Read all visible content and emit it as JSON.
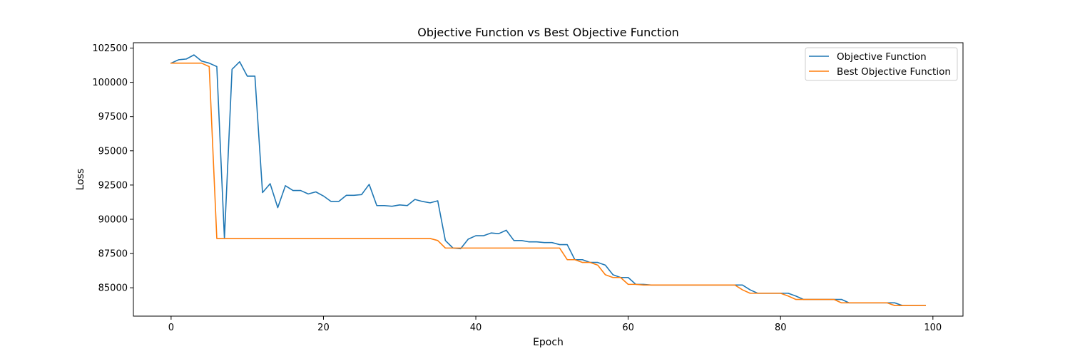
{
  "chart_data": {
    "type": "line",
    "title": "Objective Function vs Best Objective Function",
    "xlabel": "Epoch",
    "ylabel": "Loss",
    "xlim": [
      -4.95,
      103.95
    ],
    "ylim": [
      82930,
      102890
    ],
    "xticks": [
      0,
      20,
      40,
      60,
      80,
      100
    ],
    "xtick_labels": [
      "0",
      "20",
      "40",
      "60",
      "80",
      "100"
    ],
    "yticks": [
      85000,
      87500,
      90000,
      92500,
      95000,
      97500,
      100000,
      102500
    ],
    "ytick_labels": [
      "85000",
      "87500",
      "90000",
      "92500",
      "95000",
      "97500",
      "100000",
      "102500"
    ],
    "legend_position": "top-right",
    "grid": false,
    "x": [
      0,
      1,
      2,
      3,
      4,
      5,
      6,
      7,
      8,
      9,
      10,
      11,
      12,
      13,
      14,
      15,
      16,
      17,
      18,
      19,
      20,
      21,
      22,
      23,
      24,
      25,
      26,
      27,
      28,
      29,
      30,
      31,
      32,
      33,
      34,
      35,
      36,
      37,
      38,
      39,
      40,
      41,
      42,
      43,
      44,
      45,
      46,
      47,
      48,
      49,
      50,
      51,
      52,
      53,
      54,
      55,
      56,
      57,
      58,
      59,
      60,
      61,
      62,
      63,
      64,
      65,
      66,
      67,
      68,
      69,
      70,
      71,
      72,
      73,
      74,
      75,
      76,
      77,
      78,
      79,
      80,
      81,
      82,
      83,
      84,
      85,
      86,
      87,
      88,
      89,
      90,
      91,
      92,
      93,
      94,
      95,
      96,
      97,
      98,
      99
    ],
    "series": [
      {
        "name": "Objective Function",
        "color": "#1f77b4",
        "values": [
          101400,
          101650,
          101700,
          102000,
          101550,
          101400,
          101150,
          88600,
          100950,
          101500,
          100450,
          100450,
          91950,
          92600,
          90850,
          92450,
          92100,
          92100,
          91850,
          92000,
          91700,
          91300,
          91300,
          91750,
          91750,
          91800,
          92550,
          91000,
          91000,
          90950,
          91050,
          91000,
          91450,
          91300,
          91200,
          91350,
          88450,
          87900,
          87850,
          88550,
          88800,
          88800,
          89000,
          88950,
          89200,
          88450,
          88450,
          88350,
          88350,
          88300,
          88300,
          88150,
          88150,
          87050,
          87050,
          86850,
          86850,
          86650,
          85950,
          85750,
          85750,
          85250,
          85250,
          85200,
          85200,
          85200,
          85200,
          85200,
          85200,
          85200,
          85200,
          85200,
          85200,
          85200,
          85200,
          85200,
          84850,
          84600,
          84600,
          84600,
          84600,
          84600,
          84400,
          84150,
          84150,
          84150,
          84150,
          84150,
          84150,
          83900,
          83900,
          83900,
          83900,
          83900,
          83900,
          83900,
          83700,
          83700,
          83700,
          83700
        ]
      },
      {
        "name": "Best Objective Function",
        "color": "#ff7f0e",
        "values": [
          101400,
          101400,
          101400,
          101400,
          101400,
          101150,
          88600,
          88600,
          88600,
          88600,
          88600,
          88600,
          88600,
          88600,
          88600,
          88600,
          88600,
          88600,
          88600,
          88600,
          88600,
          88600,
          88600,
          88600,
          88600,
          88600,
          88600,
          88600,
          88600,
          88600,
          88600,
          88600,
          88600,
          88600,
          88600,
          88450,
          87900,
          87900,
          87900,
          87900,
          87900,
          87900,
          87900,
          87900,
          87900,
          87900,
          87900,
          87900,
          87900,
          87900,
          87900,
          87900,
          87050,
          87050,
          86850,
          86850,
          86650,
          85950,
          85750,
          85750,
          85250,
          85250,
          85200,
          85200,
          85200,
          85200,
          85200,
          85200,
          85200,
          85200,
          85200,
          85200,
          85200,
          85200,
          85200,
          84850,
          84600,
          84600,
          84600,
          84600,
          84600,
          84400,
          84150,
          84150,
          84150,
          84150,
          84150,
          84150,
          83900,
          83900,
          83900,
          83900,
          83900,
          83900,
          83900,
          83700,
          83700,
          83700,
          83700,
          83700
        ]
      }
    ]
  }
}
